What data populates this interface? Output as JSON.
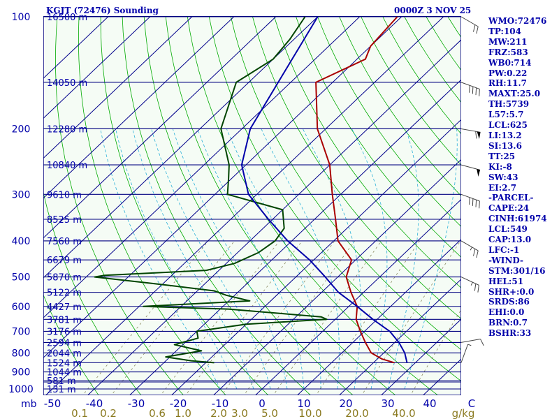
{
  "header": {
    "station": "KGJT (72476) Sounding",
    "time": "0000Z  3 NOV 25"
  },
  "stats": [
    "WMO:72476",
    "TP:104",
    "MW:211",
    "FRZ:583",
    "WB0:714",
    "PW:0.22",
    "RH:11.7",
    "MAXT:25.0",
    "TH:5739",
    "L57:5.7",
    "LCL:625",
    "LI:13.2",
    "SI:13.6",
    "TT:25",
    "KI:-8",
    "SW:43",
    "EI:2.7",
    "-PARCEL-",
    "CAPE:24",
    "CINH:61974",
    "LCL:549",
    "CAP:13.0",
    "LFC:-1",
    "-WIND-",
    "STM:301/16",
    "HEL:51",
    "SHR+:0.0",
    "SRDS:86",
    "EHI:0.0",
    "BRN:0.7",
    "BSHR:33"
  ],
  "colors": {
    "background": "#f5fcf5",
    "isobar": "#000080",
    "isotherm": "#00008b",
    "dry_adiabat": "#00aa00",
    "moist_adiabat": "#2ab0d8",
    "mixing_ratio": "#8a8a60",
    "temperature": "#aa0000",
    "dewpoint": "#004400",
    "parcel": "#0000aa",
    "labels": "#0000aa",
    "mixing_labels": "#8a7a20",
    "wind_barb": "#444444"
  },
  "chart_data": {
    "type": "line",
    "title": "KGJT (72476) Sounding",
    "diagram": "skew-T log-P",
    "x_unit": "C",
    "y_unit": "mb",
    "pressure_range": [
      1000,
      100
    ],
    "temperature_range_bottom": [
      -50,
      50
    ],
    "pressure_ticks": [
      {
        "p": 100,
        "label": "100"
      },
      {
        "p": 200,
        "label": "200"
      },
      {
        "p": 300,
        "label": "300"
      },
      {
        "p": 400,
        "label": "400"
      },
      {
        "p": 500,
        "label": "500"
      },
      {
        "p": 600,
        "label": "600"
      },
      {
        "p": 700,
        "label": "700"
      },
      {
        "p": 800,
        "label": "800"
      },
      {
        "p": 900,
        "label": "900"
      },
      {
        "p": 1000,
        "label": "1000"
      }
    ],
    "pressure_label_prefix": "mb",
    "temperature_ticks": [
      {
        "t": -50,
        "label": "-50"
      },
      {
        "t": -40,
        "label": "-40"
      },
      {
        "t": -30,
        "label": "-30"
      },
      {
        "t": -20,
        "label": "-20"
      },
      {
        "t": -10,
        "label": "-10"
      },
      {
        "t": 0,
        "label": "0"
      },
      {
        "t": 10,
        "label": "10"
      },
      {
        "t": 20,
        "label": "20"
      },
      {
        "t": 30,
        "label": "30"
      },
      {
        "t": 40,
        "label": "40"
      },
      {
        "t": 50,
        "label": "C"
      }
    ],
    "height_levels": [
      {
        "p": 100,
        "label": "16500 m"
      },
      {
        "p": 150,
        "label": "14050 m"
      },
      {
        "p": 200,
        "label": "12280 m"
      },
      {
        "p": 250,
        "label": "10840 m"
      },
      {
        "p": 300,
        "label": "9610 m"
      },
      {
        "p": 350,
        "label": "8525 m"
      },
      {
        "p": 400,
        "label": "7560 m"
      },
      {
        "p": 450,
        "label": "6679 m"
      },
      {
        "p": 500,
        "label": "5870 m"
      },
      {
        "p": 550,
        "label": "5122 m"
      },
      {
        "p": 600,
        "label": "4427 m"
      },
      {
        "p": 650,
        "label": "3781 m"
      },
      {
        "p": 700,
        "label": "3176 m"
      },
      {
        "p": 750,
        "label": "2594 m"
      },
      {
        "p": 800,
        "label": "2044 m"
      },
      {
        "p": 850,
        "label": "1524 m"
      },
      {
        "p": 900,
        "label": "1044 m"
      },
      {
        "p": 950,
        "label": "581 m"
      },
      {
        "p": 1000,
        "label": "131 m"
      }
    ],
    "mixing_ratio_labels": [
      "0.1",
      "0.2",
      "0.6",
      "1.0",
      "2.0",
      "3.0",
      "5.0",
      "10.0",
      "20.0",
      "40.0",
      "g/kg"
    ],
    "mixing_ratio_values": [
      0.1,
      0.2,
      0.6,
      1.0,
      2.0,
      3.0,
      5.0,
      10.0,
      20.0,
      40.0
    ],
    "series": [
      {
        "name": "Temperature",
        "points": [
          [
            100,
            -61
          ],
          [
            120,
            -60
          ],
          [
            130,
            -58
          ],
          [
            150,
            -64
          ],
          [
            200,
            -52
          ],
          [
            250,
            -40
          ],
          [
            300,
            -32
          ],
          [
            350,
            -25
          ],
          [
            400,
            -19
          ],
          [
            450,
            -11
          ],
          [
            500,
            -8
          ],
          [
            550,
            -3
          ],
          [
            600,
            2
          ],
          [
            650,
            5
          ],
          [
            700,
            9
          ],
          [
            750,
            13
          ],
          [
            800,
            17
          ],
          [
            830,
            21
          ],
          [
            850,
            25
          ]
        ]
      },
      {
        "name": "Dewpoint",
        "points": [
          [
            100,
            -83
          ],
          [
            115,
            -81
          ],
          [
            130,
            -80
          ],
          [
            150,
            -83
          ],
          [
            200,
            -75
          ],
          [
            250,
            -64
          ],
          [
            270,
            -61
          ],
          [
            300,
            -57
          ],
          [
            330,
            -40
          ],
          [
            370,
            -35
          ],
          [
            400,
            -34
          ],
          [
            430,
            -35
          ],
          [
            460,
            -38
          ],
          [
            480,
            -43
          ],
          [
            495,
            -66
          ],
          [
            500,
            -68
          ],
          [
            520,
            -53
          ],
          [
            530,
            -46
          ],
          [
            545,
            -36
          ],
          [
            560,
            -32
          ],
          [
            580,
            -25
          ],
          [
            600,
            -49
          ],
          [
            610,
            -28
          ],
          [
            640,
            -4
          ],
          [
            650,
            -2
          ],
          [
            670,
            -20
          ],
          [
            700,
            -30
          ],
          [
            730,
            -28
          ],
          [
            760,
            -32
          ],
          [
            790,
            -24
          ],
          [
            820,
            -31
          ],
          [
            840,
            -24
          ],
          [
            850,
            -18
          ]
        ]
      },
      {
        "name": "Parcel",
        "points": [
          [
            100,
            -80
          ],
          [
            150,
            -73
          ],
          [
            200,
            -68
          ],
          [
            250,
            -61
          ],
          [
            300,
            -52
          ],
          [
            350,
            -41
          ],
          [
            400,
            -31
          ],
          [
            450,
            -21
          ],
          [
            500,
            -13
          ],
          [
            550,
            -6
          ],
          [
            600,
            2
          ],
          [
            650,
            9
          ],
          [
            700,
            16
          ],
          [
            750,
            21
          ],
          [
            800,
            25
          ],
          [
            850,
            28
          ]
        ]
      }
    ],
    "wind_barbs": [
      {
        "p": 100,
        "speed_kt": 20,
        "dir": 300
      },
      {
        "p": 150,
        "speed_kt": 40,
        "dir": 290
      },
      {
        "p": 200,
        "speed_kt": 60,
        "dir": 280
      },
      {
        "p": 250,
        "speed_kt": 50,
        "dir": 285
      },
      {
        "p": 300,
        "speed_kt": 40,
        "dir": 290
      },
      {
        "p": 400,
        "speed_kt": 25,
        "dir": 300
      },
      {
        "p": 500,
        "speed_kt": 25,
        "dir": 295
      },
      {
        "p": 750,
        "speed_kt": 10,
        "dir": 260
      },
      {
        "p": 850,
        "speed_kt": 5,
        "dir": 200
      }
    ]
  }
}
